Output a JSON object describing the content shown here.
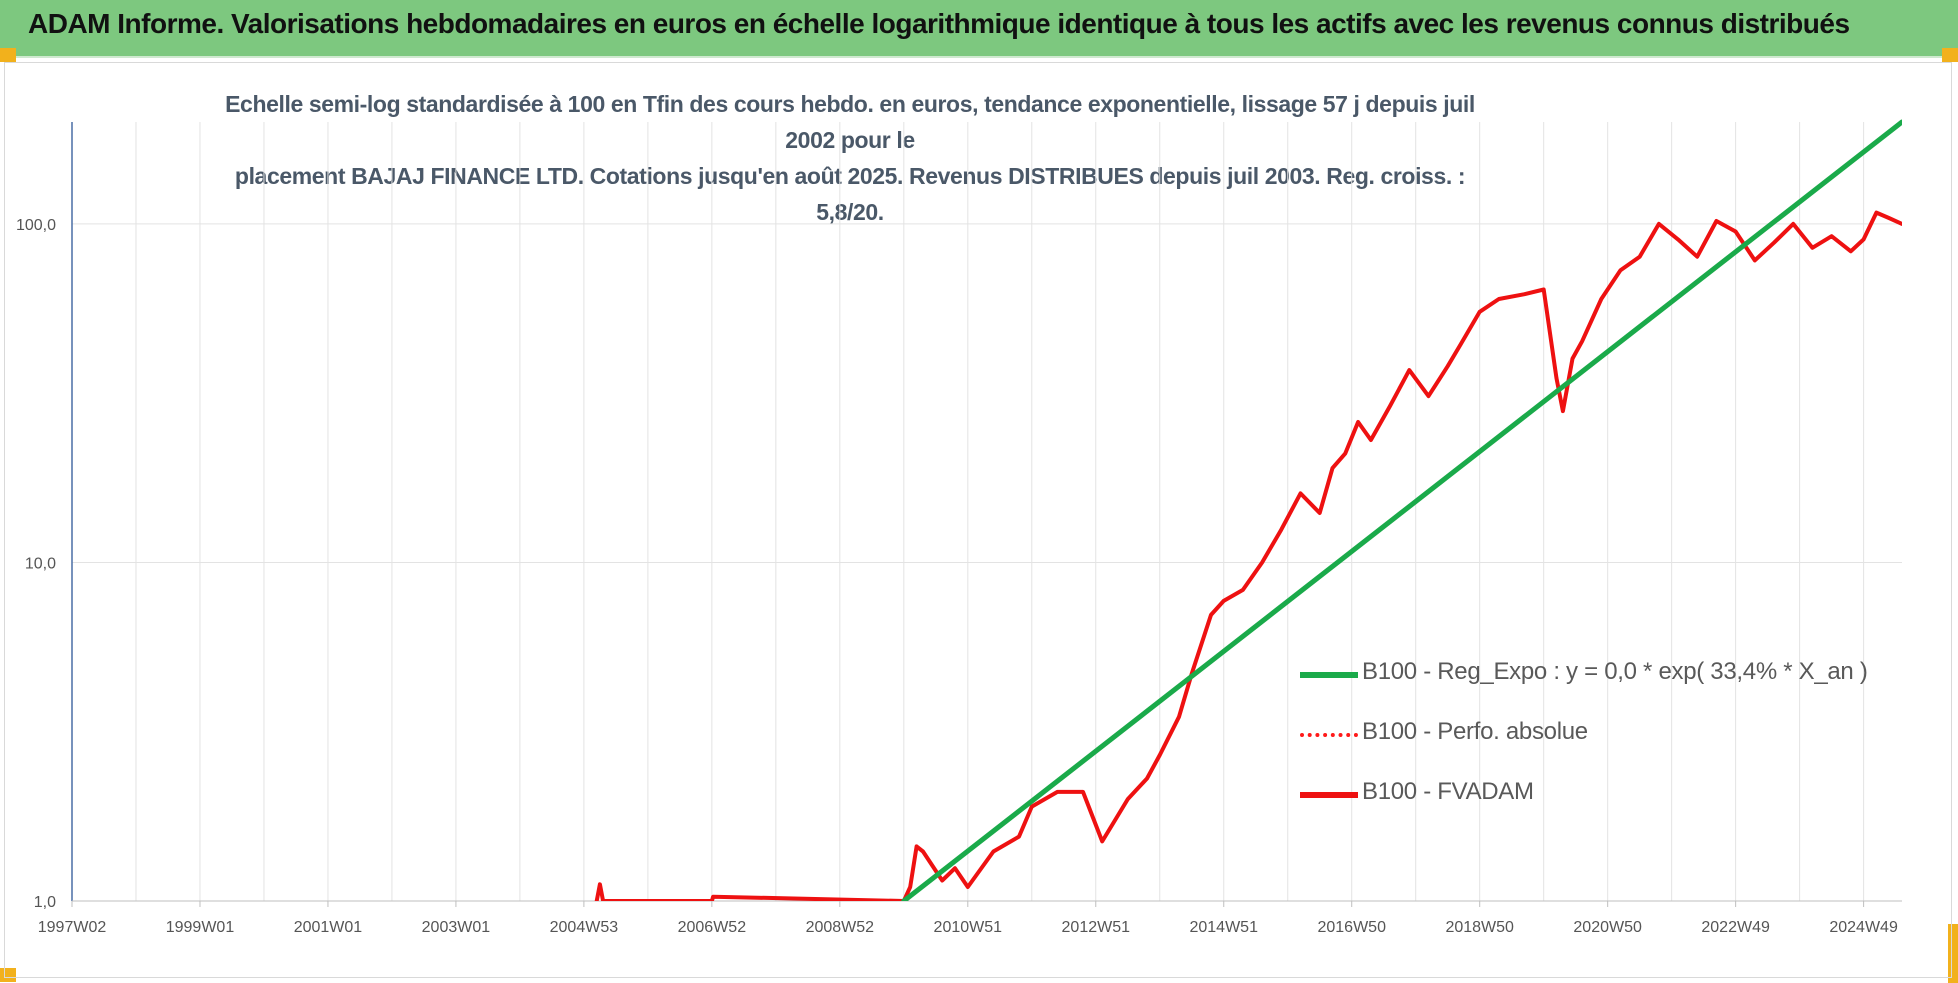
{
  "header": {
    "title": "ADAM Informe. Valorisations hebdomadaires en euros en échelle logarithmique identique à tous les actifs avec les revenus connus distribués"
  },
  "chart_data": {
    "type": "line",
    "title_lines": [
      "Echelle semi-log standardisée à 100 en Tfin des cours hebdo. en euros, tendance exponentielle, lissage 57 j depuis juil 2002 pour le",
      "placement BAJAJ FINANCE LTD. Cotations jusqu'en août 2025. Revenus DISTRIBUES depuis juil 2003. Reg. croiss. : 5,8/20."
    ],
    "y_scale": "log",
    "ylim": [
      1,
      200
    ],
    "y_ticks": [
      {
        "value": 1,
        "label": "1,0"
      },
      {
        "value": 10,
        "label": "10,0"
      },
      {
        "value": 100,
        "label": "100,0"
      }
    ],
    "xlim": [
      1997.0,
      2025.6
    ],
    "x_ticks": [
      {
        "value": 1997.0,
        "label": "1997W02"
      },
      {
        "value": 1999.0,
        "label": "1999W01"
      },
      {
        "value": 2001.0,
        "label": "2001W01"
      },
      {
        "value": 2003.0,
        "label": "2003W01"
      },
      {
        "value": 2005.0,
        "label": "2004W53"
      },
      {
        "value": 2007.0,
        "label": "2006W52"
      },
      {
        "value": 2009.0,
        "label": "2008W52"
      },
      {
        "value": 2011.0,
        "label": "2010W51"
      },
      {
        "value": 2013.0,
        "label": "2012W51"
      },
      {
        "value": 2015.0,
        "label": "2014W51"
      },
      {
        "value": 2017.0,
        "label": "2016W50"
      },
      {
        "value": 2019.0,
        "label": "2018W50"
      },
      {
        "value": 2021.0,
        "label": "2020W50"
      },
      {
        "value": 2023.0,
        "label": "2022W49"
      },
      {
        "value": 2025.0,
        "label": "2024W49"
      }
    ],
    "grid": true,
    "legend_position": "right",
    "series": [
      {
        "name": "B100 - Reg_Expo : y = 0,0 * exp( 33,4% *  X_an )",
        "color": "#1aaa4a",
        "style": "solid",
        "x": [
          2010.0,
          2025.6
        ],
        "y": [
          1.0,
          200.0
        ]
      },
      {
        "name": "B100 - Perfo. absolue",
        "color": "#ff1a1a",
        "style": "dotted",
        "x": [
          2010.0,
          2010.1,
          2010.2,
          2010.3,
          2010.6,
          2010.8,
          2011.0,
          2011.4,
          2011.8,
          2012.0,
          2012.4,
          2012.8,
          2013.1,
          2013.5,
          2013.8,
          2014.0,
          2014.3,
          2014.5,
          2014.8,
          2015.0,
          2015.3,
          2015.6,
          2015.9,
          2016.2,
          2016.5,
          2016.7,
          2016.9,
          2017.1,
          2017.3,
          2017.6,
          2017.9,
          2018.2,
          2018.5,
          2018.7,
          2019.0,
          2019.3,
          2019.7,
          2020.0,
          2020.2,
          2020.3,
          2020.45,
          2020.6,
          2020.9,
          2021.2,
          2021.5,
          2021.8,
          2022.1,
          2022.4,
          2022.7,
          2023.0,
          2023.3,
          2023.6,
          2023.9,
          2024.2,
          2024.5,
          2024.8,
          2025.0,
          2025.2,
          2025.4,
          2025.6
        ],
        "y": [
          1.0,
          1.1,
          1.45,
          1.4,
          1.15,
          1.25,
          1.1,
          1.4,
          1.55,
          1.9,
          2.1,
          2.1,
          1.5,
          2.0,
          2.3,
          2.7,
          3.5,
          4.7,
          7.0,
          7.7,
          8.3,
          10.0,
          12.5,
          16.0,
          14.0,
          19.0,
          21.0,
          26.0,
          23.0,
          29.0,
          37.0,
          31.0,
          38.0,
          44.0,
          55.0,
          60.0,
          62.0,
          64.0,
          35.0,
          28.0,
          40.0,
          45.0,
          60.0,
          73.0,
          80.0,
          100.0,
          90.0,
          80.0,
          102.0,
          95.0,
          78.0,
          88.0,
          100.0,
          85.0,
          92.0,
          83.0,
          90.0,
          108.0,
          104.0,
          100.0
        ]
      },
      {
        "name": "B100 - FVADAM",
        "color": "#ee1111",
        "style": "solid",
        "x": [
          2005.2,
          2005.25,
          2005.3,
          2007.0,
          2007.02,
          2010.0,
          2010.1,
          2010.2,
          2010.3,
          2010.6,
          2010.8,
          2011.0,
          2011.4,
          2011.8,
          2012.0,
          2012.4,
          2012.8,
          2013.1,
          2013.5,
          2013.8,
          2014.0,
          2014.3,
          2014.5,
          2014.8,
          2015.0,
          2015.3,
          2015.6,
          2015.9,
          2016.2,
          2016.5,
          2016.7,
          2016.9,
          2017.1,
          2017.3,
          2017.6,
          2017.9,
          2018.2,
          2018.5,
          2018.7,
          2019.0,
          2019.3,
          2019.7,
          2020.0,
          2020.2,
          2020.3,
          2020.45,
          2020.6,
          2020.9,
          2021.2,
          2021.5,
          2021.8,
          2022.1,
          2022.4,
          2022.7,
          2023.0,
          2023.3,
          2023.6,
          2023.9,
          2024.2,
          2024.5,
          2024.8,
          2025.0,
          2025.2,
          2025.4,
          2025.6
        ],
        "y": [
          1.0,
          1.12,
          1.0,
          1.0,
          1.03,
          1.0,
          1.1,
          1.45,
          1.4,
          1.15,
          1.25,
          1.1,
          1.4,
          1.55,
          1.9,
          2.1,
          2.1,
          1.5,
          2.0,
          2.3,
          2.7,
          3.5,
          4.7,
          7.0,
          7.7,
          8.3,
          10.0,
          12.5,
          16.0,
          14.0,
          19.0,
          21.0,
          26.0,
          23.0,
          29.0,
          37.0,
          31.0,
          38.0,
          44.0,
          55.0,
          60.0,
          62.0,
          64.0,
          35.0,
          28.0,
          40.0,
          45.0,
          60.0,
          73.0,
          80.0,
          100.0,
          90.0,
          80.0,
          102.0,
          95.0,
          78.0,
          88.0,
          100.0,
          85.0,
          92.0,
          83.0,
          90.0,
          108.0,
          104.0,
          100.0
        ]
      }
    ]
  }
}
